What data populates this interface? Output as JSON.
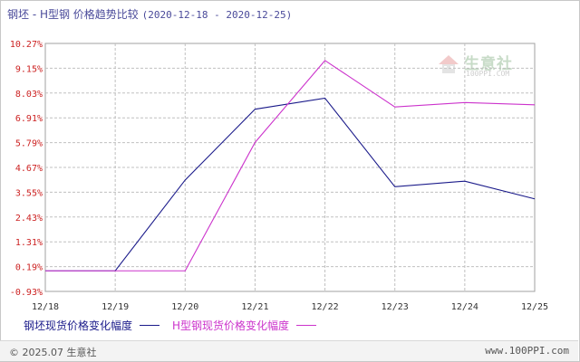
{
  "header": {
    "title": "钢坯 - H型钢 价格趋势比较",
    "date_range": "(2020-12-18 - 2020-12-25)"
  },
  "watermark": {
    "brand": "生意社",
    "url": "100PPI.COM"
  },
  "footer": {
    "copyright": "© 2025.07 生意社",
    "site": "www.100PPI.com"
  },
  "colors": {
    "series1": "#1a1a8a",
    "series2": "#cc33cc",
    "y_tick_text": "#cc2222",
    "x_tick_text": "#333333",
    "grid": "#c0c0c0"
  },
  "chart_data": {
    "type": "line",
    "title": "钢坯 - H型钢 价格趋势比较",
    "categories": [
      "12/18",
      "12/19",
      "12/20",
      "12/21",
      "12/22",
      "12/23",
      "12/24",
      "12/25"
    ],
    "y_ticks": [
      "10.27%",
      "9.15%",
      "8.03%",
      "6.91%",
      "5.79%",
      "4.67%",
      "3.55%",
      "2.43%",
      "1.31%",
      "0.19%",
      "-0.93%"
    ],
    "ylim": [
      -0.93,
      10.27
    ],
    "grid": true,
    "legend_position": "bottom-left",
    "series": [
      {
        "name": "钢坯现货价格变化幅度",
        "values": [
          0,
          0,
          4.1,
          7.3,
          7.8,
          3.8,
          4.05,
          3.25
        ]
      },
      {
        "name": "H型钢现货价格变化幅度",
        "values": [
          0,
          0,
          0,
          5.8,
          9.5,
          7.4,
          7.6,
          7.5
        ]
      }
    ]
  }
}
